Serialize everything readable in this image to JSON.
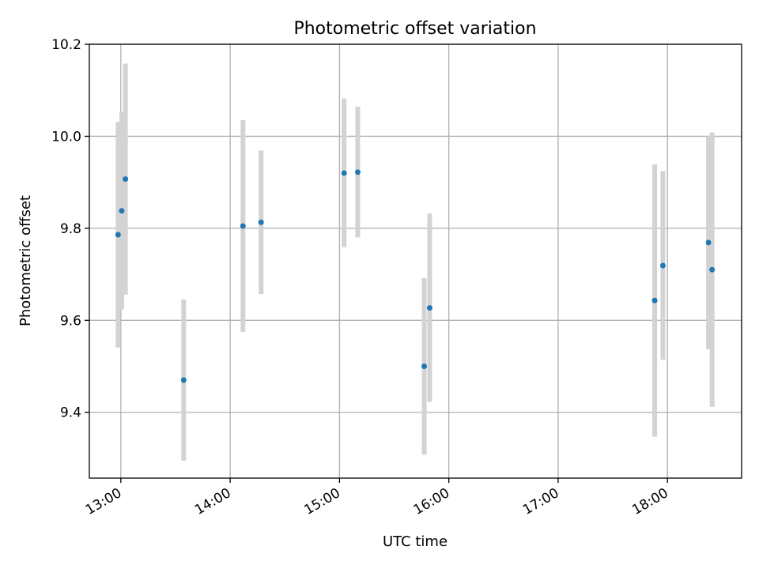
{
  "chart_data": {
    "type": "scatter",
    "title": "Photometric offset variation",
    "xlabel": "UTC time",
    "ylabel": "Photometric offset",
    "x_tick_labels": [
      "13:00",
      "14:00",
      "15:00",
      "16:00",
      "17:00",
      "18:00"
    ],
    "x_tick_hours": [
      13,
      14,
      15,
      16,
      17,
      18
    ],
    "y_ticks": [
      9.4,
      9.6,
      9.8,
      10.0,
      10.2
    ],
    "y_tick_labels": [
      "9.4",
      "9.6",
      "9.8",
      "10.0",
      "10.2"
    ],
    "xlim_hours": [
      12.712,
      18.678
    ],
    "ylim": [
      9.257,
      10.2
    ],
    "grid": true,
    "marker_color": "#1f77b4",
    "errorbar_color": "#d3d3d3",
    "points": [
      {
        "time_hours": 12.975,
        "value": 9.786,
        "low": 9.541,
        "high": 10.031
      },
      {
        "time_hours": 13.008,
        "value": 9.838,
        "low": 9.623,
        "high": 10.054
      },
      {
        "time_hours": 13.042,
        "value": 9.907,
        "low": 9.656,
        "high": 10.158
      },
      {
        "time_hours": 13.575,
        "value": 9.47,
        "low": 9.295,
        "high": 9.645
      },
      {
        "time_hours": 14.117,
        "value": 9.805,
        "low": 9.575,
        "high": 10.035
      },
      {
        "time_hours": 14.283,
        "value": 9.813,
        "low": 9.657,
        "high": 9.969
      },
      {
        "time_hours": 15.042,
        "value": 9.92,
        "low": 9.759,
        "high": 10.082
      },
      {
        "time_hours": 15.167,
        "value": 9.922,
        "low": 9.78,
        "high": 10.064
      },
      {
        "time_hours": 15.775,
        "value": 9.5,
        "low": 9.308,
        "high": 9.692
      },
      {
        "time_hours": 15.825,
        "value": 9.627,
        "low": 9.423,
        "high": 9.832
      },
      {
        "time_hours": 17.883,
        "value": 9.643,
        "low": 9.347,
        "high": 9.939
      },
      {
        "time_hours": 17.958,
        "value": 9.719,
        "low": 9.514,
        "high": 9.924
      },
      {
        "time_hours": 18.375,
        "value": 9.769,
        "low": 9.537,
        "high": 10.0
      },
      {
        "time_hours": 18.408,
        "value": 9.71,
        "low": 9.412,
        "high": 10.008
      }
    ]
  }
}
